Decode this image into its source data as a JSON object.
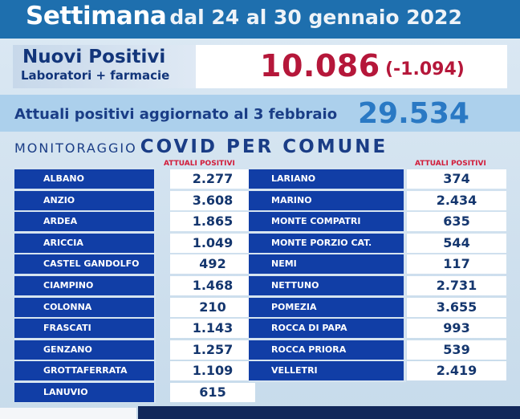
{
  "header": {
    "title_big": "Settimana",
    "title_rest": "dal 24 al 30 gennaio 2022"
  },
  "nuovi": {
    "title": "Nuovi Positivi",
    "subtitle": "Laboratori + farmacie",
    "value": "10.086",
    "delta": "(-1.094)"
  },
  "attuali": {
    "label": "Attuali positivi aggiornato al 3 febbraio",
    "value": "29.534"
  },
  "monitoraggio": {
    "small": "MONITORAGGIO",
    "bold": "COVID PER COMUNE",
    "column_header": "ATTUALI  POSITIVI"
  },
  "left_rows": [
    {
      "name": "ALBANO",
      "value": "2.277"
    },
    {
      "name": "ANZIO",
      "value": "3.608"
    },
    {
      "name": "ARDEA",
      "value": "1.865"
    },
    {
      "name": "ARICCIA",
      "value": "1.049"
    },
    {
      "name": "CASTEL GANDOLFO",
      "value": "492"
    },
    {
      "name": "CIAMPINO",
      "value": "1.468"
    },
    {
      "name": "COLONNA",
      "value": "210"
    },
    {
      "name": "FRASCATI",
      "value": "1.143"
    },
    {
      "name": "GENZANO",
      "value": "1.257"
    },
    {
      "name": "GROTTAFERRATA",
      "value": "1.109"
    },
    {
      "name": "LANUVIO",
      "value": "615"
    }
  ],
  "right_rows": [
    {
      "name": "LARIANO",
      "value": "374"
    },
    {
      "name": "MARINO",
      "value": "2.434"
    },
    {
      "name": "MONTE COMPATRI",
      "value": "635"
    },
    {
      "name": "MONTE PORZIO CAT.",
      "value": "544"
    },
    {
      "name": "NEMI",
      "value": "117"
    },
    {
      "name": "NETTUNO",
      "value": "2.731"
    },
    {
      "name": "POMEZIA",
      "value": "3.655"
    },
    {
      "name": "ROCCA DI PAPA",
      "value": "993"
    },
    {
      "name": "ROCCA PRIORA",
      "value": "539"
    },
    {
      "name": "VELLETRI",
      "value": "2.419"
    }
  ],
  "colors": {
    "top_band": "#1e6fae",
    "name_cell": "#113ea6",
    "accent_red": "#b5173a",
    "attuali_band": "#acd0ec",
    "value_blue": "#2a79c4"
  }
}
